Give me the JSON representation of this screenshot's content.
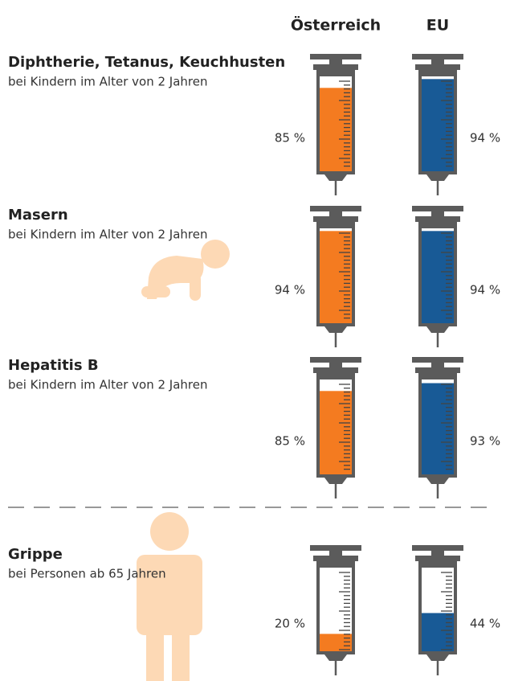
{
  "chart_data": {
    "type": "syringe",
    "categories": [
      "Diphtherie, Tetanus, Keuchhusten",
      "Masern",
      "Hepatitis B",
      "Grippe"
    ],
    "subtitles": [
      "bei Kindern im Alter von 2 Jahren",
      "bei Kindern im Alter von 2 Jahren",
      "bei Kindern im Alter von 2 Jahren",
      "bei Personen ab 65 Jahren"
    ],
    "ylim": [
      0,
      100
    ],
    "series": [
      {
        "name": "Österreich",
        "color": "#f47b20",
        "values": [
          85,
          94,
          85,
          20
        ],
        "value_labels": [
          "85 %",
          "94 %",
          "85 %",
          "20 %"
        ]
      },
      {
        "name": "EU",
        "color": "#185a96",
        "values": [
          94,
          94,
          93,
          44
        ],
        "value_labels": [
          "94 %",
          "94 %",
          "93 %",
          "44 %"
        ]
      }
    ]
  }
}
